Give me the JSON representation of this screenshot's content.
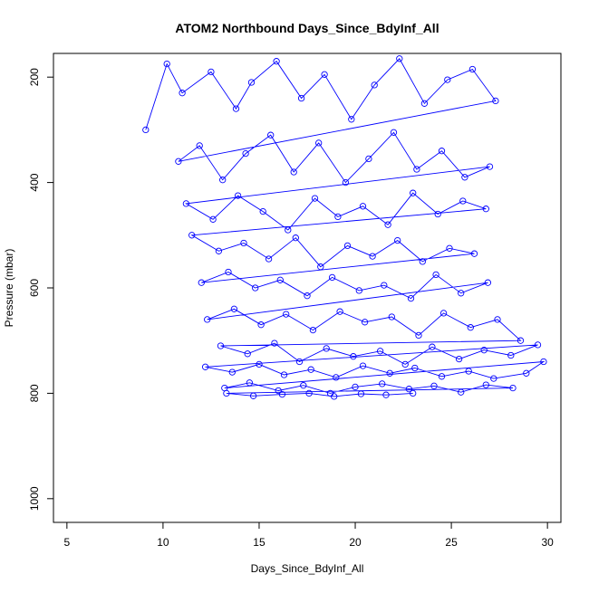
{
  "chart_data": {
    "type": "scatter",
    "title": "ATOM2 Northbound Days_Since_BdyInf_All",
    "xlabel": "Days_Since_BdyInf_All",
    "ylabel": "Pressure (mbar)",
    "xlim": [
      4.3,
      30.7
    ],
    "ylim": [
      1045,
      155
    ],
    "y_reversed": true,
    "x_ticks": [
      "5",
      "10",
      "15",
      "20",
      "25",
      "30"
    ],
    "y_ticks": [
      "200",
      "400",
      "600",
      "800",
      "1000"
    ],
    "grid": false,
    "legend": "none",
    "point_style": "open-circle-with-connecting-lines",
    "series": [
      {
        "color": "#0000ff",
        "x": [
          9.1,
          10.2,
          11.0,
          12.5,
          13.8,
          14.6,
          15.9,
          17.2,
          18.4,
          19.8,
          21.0,
          22.3,
          23.6,
          24.8,
          26.1,
          27.3,
          10.8,
          11.9,
          13.1,
          14.3,
          15.6,
          16.8,
          18.1,
          19.5,
          20.7,
          22.0,
          23.2,
          24.5,
          25.7,
          27.0,
          11.2,
          12.6,
          13.9,
          15.2,
          16.5,
          17.9,
          19.1,
          20.4,
          21.7,
          23.0,
          24.3,
          25.6,
          26.8,
          11.5,
          12.9,
          14.2,
          15.5,
          16.9,
          18.2,
          19.6,
          20.9,
          22.2,
          23.5,
          24.9,
          26.2,
          12.0,
          13.4,
          14.8,
          16.1,
          17.5,
          18.8,
          20.2,
          21.5,
          22.9,
          24.2,
          25.5,
          26.9,
          12.3,
          13.7,
          15.1,
          16.4,
          17.8,
          19.2,
          20.5,
          21.9,
          23.3,
          24.6,
          26.0,
          27.4,
          28.6,
          13.0,
          14.4,
          15.8,
          17.1,
          18.5,
          19.9,
          21.3,
          22.6,
          24.0,
          25.4,
          26.7,
          28.1,
          29.5,
          12.2,
          13.6,
          15.0,
          16.3,
          17.7,
          19.0,
          20.4,
          21.8,
          23.1,
          24.5,
          25.9,
          27.2,
          28.9,
          29.8,
          13.2,
          14.5,
          16.0,
          17.3,
          18.7,
          20.0,
          21.4,
          22.8,
          24.1,
          25.5,
          26.8,
          28.2,
          13.3,
          14.7,
          16.2,
          17.6,
          18.9,
          20.3,
          21.6,
          23.0
        ],
        "y": [
          300,
          175,
          230,
          190,
          260,
          210,
          170,
          240,
          195,
          280,
          215,
          165,
          250,
          205,
          185,
          245,
          360,
          330,
          395,
          345,
          310,
          380,
          325,
          400,
          355,
          305,
          375,
          340,
          390,
          370,
          440,
          470,
          425,
          455,
          490,
          430,
          465,
          445,
          480,
          420,
          460,
          435,
          450,
          500,
          530,
          515,
          545,
          505,
          560,
          520,
          540,
          510,
          550,
          525,
          535,
          590,
          570,
          600,
          585,
          615,
          580,
          605,
          595,
          620,
          575,
          610,
          590,
          660,
          640,
          670,
          650,
          680,
          645,
          665,
          655,
          690,
          648,
          675,
          660,
          700,
          710,
          725,
          705,
          740,
          715,
          730,
          720,
          745,
          712,
          735,
          718,
          728,
          708,
          750,
          760,
          745,
          765,
          755,
          770,
          748,
          762,
          752,
          768,
          758,
          772,
          762,
          740,
          790,
          780,
          795,
          785,
          800,
          788,
          782,
          792,
          786,
          798,
          784,
          790,
          800,
          805,
          802,
          800,
          806,
          801,
          803,
          800
        ]
      }
    ]
  }
}
